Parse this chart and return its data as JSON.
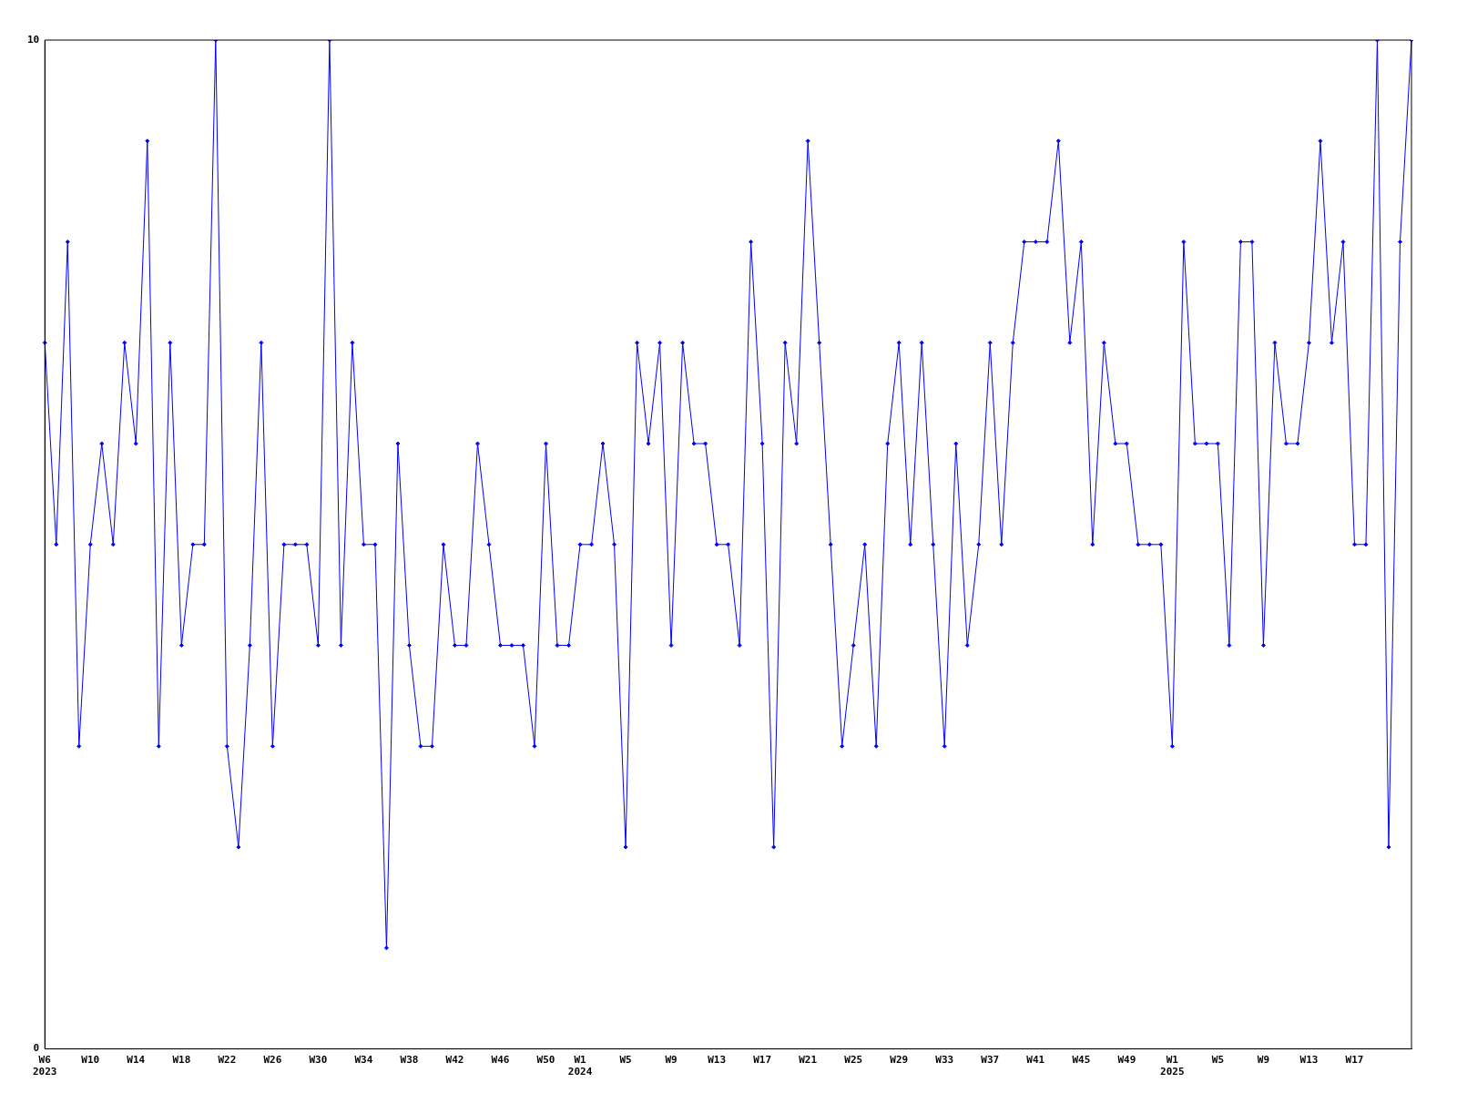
{
  "chart_data": {
    "type": "line",
    "categories": [
      "W6\n2023",
      null,
      null,
      null,
      "W10",
      null,
      null,
      null,
      "W14",
      null,
      null,
      null,
      "W18",
      null,
      null,
      null,
      "W22",
      null,
      null,
      null,
      "W26",
      null,
      null,
      null,
      "W30",
      null,
      null,
      null,
      "W34",
      null,
      null,
      null,
      "W38",
      null,
      null,
      null,
      "W42",
      null,
      null,
      null,
      "W46",
      null,
      null,
      null,
      "W50",
      null,
      null,
      "W1\n2024",
      null,
      null,
      null,
      "W5",
      null,
      null,
      null,
      "W9",
      null,
      null,
      null,
      "W13",
      null,
      null,
      null,
      "W17",
      null,
      null,
      null,
      "W21",
      null,
      null,
      null,
      "W25",
      null,
      null,
      null,
      "W29",
      null,
      null,
      null,
      "W33",
      null,
      null,
      null,
      "W37",
      null,
      null,
      null,
      "W41",
      null,
      null,
      null,
      "W45",
      null,
      null,
      null,
      "W49",
      null,
      null,
      null,
      "W1\n2025",
      null,
      null,
      null,
      "W5",
      null,
      null,
      null,
      "W9",
      null,
      null,
      null,
      "W13",
      null,
      null,
      null,
      "W17",
      null,
      null,
      null,
      null,
      null
    ],
    "series": [
      {
        "color": "#0000ff",
        "values": [
          7,
          5,
          8,
          3,
          5,
          6,
          5,
          7,
          6,
          9,
          3,
          7,
          4,
          5,
          5,
          10,
          3,
          2,
          4,
          7,
          3,
          5,
          5,
          5,
          4,
          10,
          4,
          7,
          5,
          5,
          1,
          6,
          4,
          3,
          3,
          5,
          4,
          4,
          6,
          5,
          4,
          4,
          4,
          3,
          6,
          4,
          4,
          5,
          5,
          6,
          5,
          2,
          7,
          6,
          7,
          4,
          7,
          6,
          6,
          5,
          5,
          4,
          8,
          6,
          2,
          7,
          6,
          9,
          7,
          5,
          3,
          4,
          5,
          3,
          6,
          7,
          5,
          7,
          5,
          3,
          6,
          4,
          5,
          7,
          5,
          7,
          8,
          8,
          8,
          9,
          7,
          8,
          5,
          7,
          6,
          6,
          5,
          5,
          5,
          3,
          8,
          6,
          6,
          6,
          4,
          8,
          8,
          4,
          7,
          6,
          6,
          7,
          9,
          7,
          8,
          5,
          5,
          10,
          2,
          8,
          10
        ]
      }
    ],
    "ylim": [
      0,
      10
    ],
    "yticks": [
      0,
      10
    ],
    "marker": "diamond",
    "line_style": "solid"
  }
}
